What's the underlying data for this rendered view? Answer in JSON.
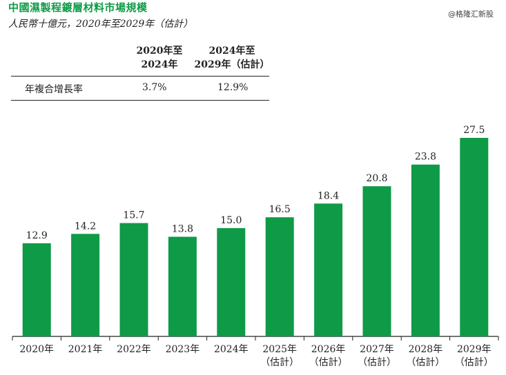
{
  "header": {
    "title": "中國濕製程鍍層材料市場規模",
    "subtitle": "人民幣十億元，2020年至2029年（估計）",
    "watermark": "@格隆汇新股"
  },
  "cagr_table": {
    "col1_line1": "2020年至",
    "col1_line2": "2024年",
    "col2_line1": "2024年至",
    "col2_line2": "2029年（估計）",
    "row_label": "年複合增長率",
    "col1_value": "3.7%",
    "col2_value": "12.9%"
  },
  "chart_data": {
    "type": "bar",
    "categories": [
      "2020年",
      "2021年",
      "2022年",
      "2023年",
      "2024年",
      "2025年（估計）",
      "2026年（估計）",
      "2027年（估計）",
      "2028年（估計）",
      "2029年（估計）"
    ],
    "category_lines": [
      [
        "2020年"
      ],
      [
        "2021年"
      ],
      [
        "2022年"
      ],
      [
        "2023年"
      ],
      [
        "2024年"
      ],
      [
        "2025年",
        "（估計）"
      ],
      [
        "2026年",
        "（估計）"
      ],
      [
        "2027年",
        "（估計）"
      ],
      [
        "2028年",
        "（估計）"
      ],
      [
        "2029年",
        "（估計）"
      ]
    ],
    "values": [
      12.9,
      14.2,
      15.7,
      13.8,
      15.0,
      16.5,
      18.4,
      20.8,
      23.8,
      27.5
    ],
    "value_labels": [
      "12.9",
      "14.2",
      "15.7",
      "13.8",
      "15.0",
      "16.5",
      "18.4",
      "20.8",
      "23.8",
      "27.5"
    ],
    "bar_color": "#0e9a47",
    "ylim": [
      0,
      27.5
    ],
    "grid": false
  }
}
